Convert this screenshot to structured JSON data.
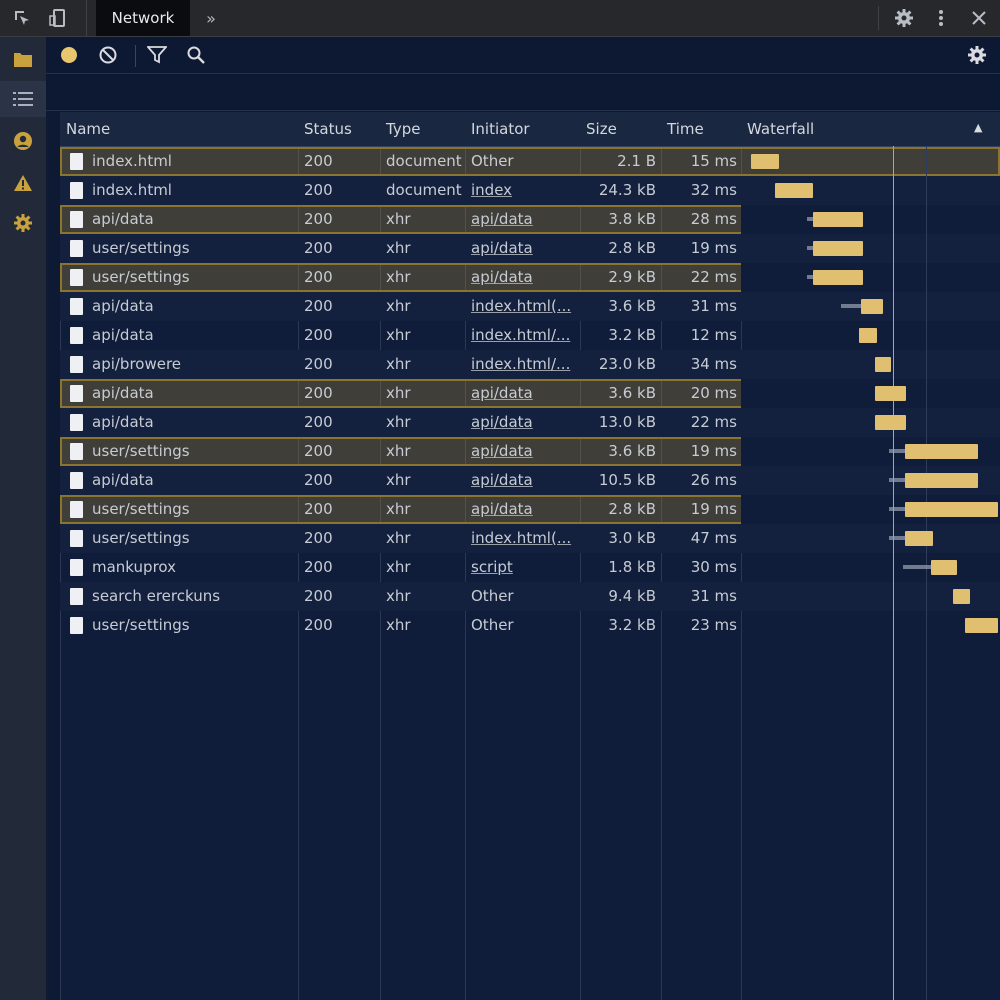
{
  "top_bar": {
    "active_tab": "Network",
    "more_tabs_glyph": "»",
    "icons": [
      "inspect-element-icon",
      "device-toolbar-icon",
      "gear-icon",
      "more-vertical-icon",
      "close-icon"
    ]
  },
  "rail": {
    "icons": [
      "folder-icon",
      "list-icon",
      "user-icon",
      "warning-icon",
      "gear-icon"
    ]
  },
  "toolbar": {
    "icons": [
      "record-icon",
      "clear-icon",
      "filter-icon",
      "search-icon",
      "gear-icon"
    ]
  },
  "columns": {
    "name": "Name",
    "status": "Status",
    "type": "Type",
    "initiator": "Initiator",
    "size": "Size",
    "time": "Time",
    "waterfall": "Waterfall",
    "sort_glyph": "▲"
  },
  "rows": [
    {
      "name": "index.html",
      "status": "200",
      "type": "document",
      "initiator": "Other",
      "size": "2.1 B",
      "time": "15 ms",
      "selected": true
    },
    {
      "name": "index.html",
      "status": "200",
      "type": "document",
      "initiator": "index",
      "size": "24.3 kB",
      "time": "32 ms",
      "selected": false
    },
    {
      "name": "api/data",
      "status": "200",
      "type": "xhr",
      "initiator": "api/data",
      "size": "3.8 kB",
      "time": "28 ms",
      "selected": true
    },
    {
      "name": "user/settings",
      "status": "200",
      "type": "xhr",
      "initiator": "api/data",
      "size": "2.8 kB",
      "time": "19 ms",
      "selected": false
    },
    {
      "name": "user/settings",
      "status": "200",
      "type": "xhr",
      "initiator": "api/data",
      "size": "2.9 kB",
      "time": "22 ms",
      "selected": true
    },
    {
      "name": "api/data",
      "status": "200",
      "type": "xhr",
      "initiator": "index.html(...",
      "size": "3.6 kB",
      "time": "31 ms",
      "selected": false
    },
    {
      "name": "api/data",
      "status": "200",
      "type": "xhr",
      "initiator": "index.html/...",
      "size": "3.2 kB",
      "time": "12 ms",
      "selected": false
    },
    {
      "name": "api/browere",
      "status": "200",
      "type": "xhr",
      "initiator": "index.html/...",
      "size": "23.0 kB",
      "time": "34 ms",
      "selected": false
    },
    {
      "name": "api/data",
      "status": "200",
      "type": "xhr",
      "initiator": "api/data",
      "size": "3.6 kB",
      "time": "20 ms",
      "selected": true
    },
    {
      "name": "api/data",
      "status": "200",
      "type": "xhr",
      "initiator": "api/data",
      "size": "13.0 kB",
      "time": "22 ms",
      "selected": false
    },
    {
      "name": "user/settings",
      "status": "200",
      "type": "xhr",
      "initiator": "api/data",
      "size": "3.6 kB",
      "time": "19 ms",
      "selected": true
    },
    {
      "name": "api/data",
      "status": "200",
      "type": "xhr",
      "initiator": "api/data",
      "size": "10.5 kB",
      "time": "26 ms",
      "selected": false
    },
    {
      "name": "user/settings",
      "status": "200",
      "type": "xhr",
      "initiator": "api/data",
      "size": "2.8 kB",
      "time": "19 ms",
      "selected": true
    },
    {
      "name": "user/settings",
      "status": "200",
      "type": "xhr",
      "initiator": "index.html(...",
      "size": "3.0 kB",
      "time": "47 ms",
      "selected": false
    },
    {
      "name": "mankuprox",
      "status": "200",
      "type": "xhr",
      "initiator": "script",
      "size": "1.8 kB",
      "time": "30 ms",
      "selected": false
    },
    {
      "name": "search ererckuns",
      "status": "200",
      "type": "xhr",
      "initiator": "Other",
      "size": "9.4 kB",
      "time": "31 ms",
      "selected": false
    },
    {
      "name": "user/settings",
      "status": "200",
      "type": "xhr",
      "initiator": "Other",
      "size": "3.2 kB",
      "time": "23 ms",
      "selected": false
    }
  ],
  "colors": {
    "accent_gold": "#e0c070",
    "selection_outline": "#8a7430",
    "background": "#0e1a33"
  }
}
